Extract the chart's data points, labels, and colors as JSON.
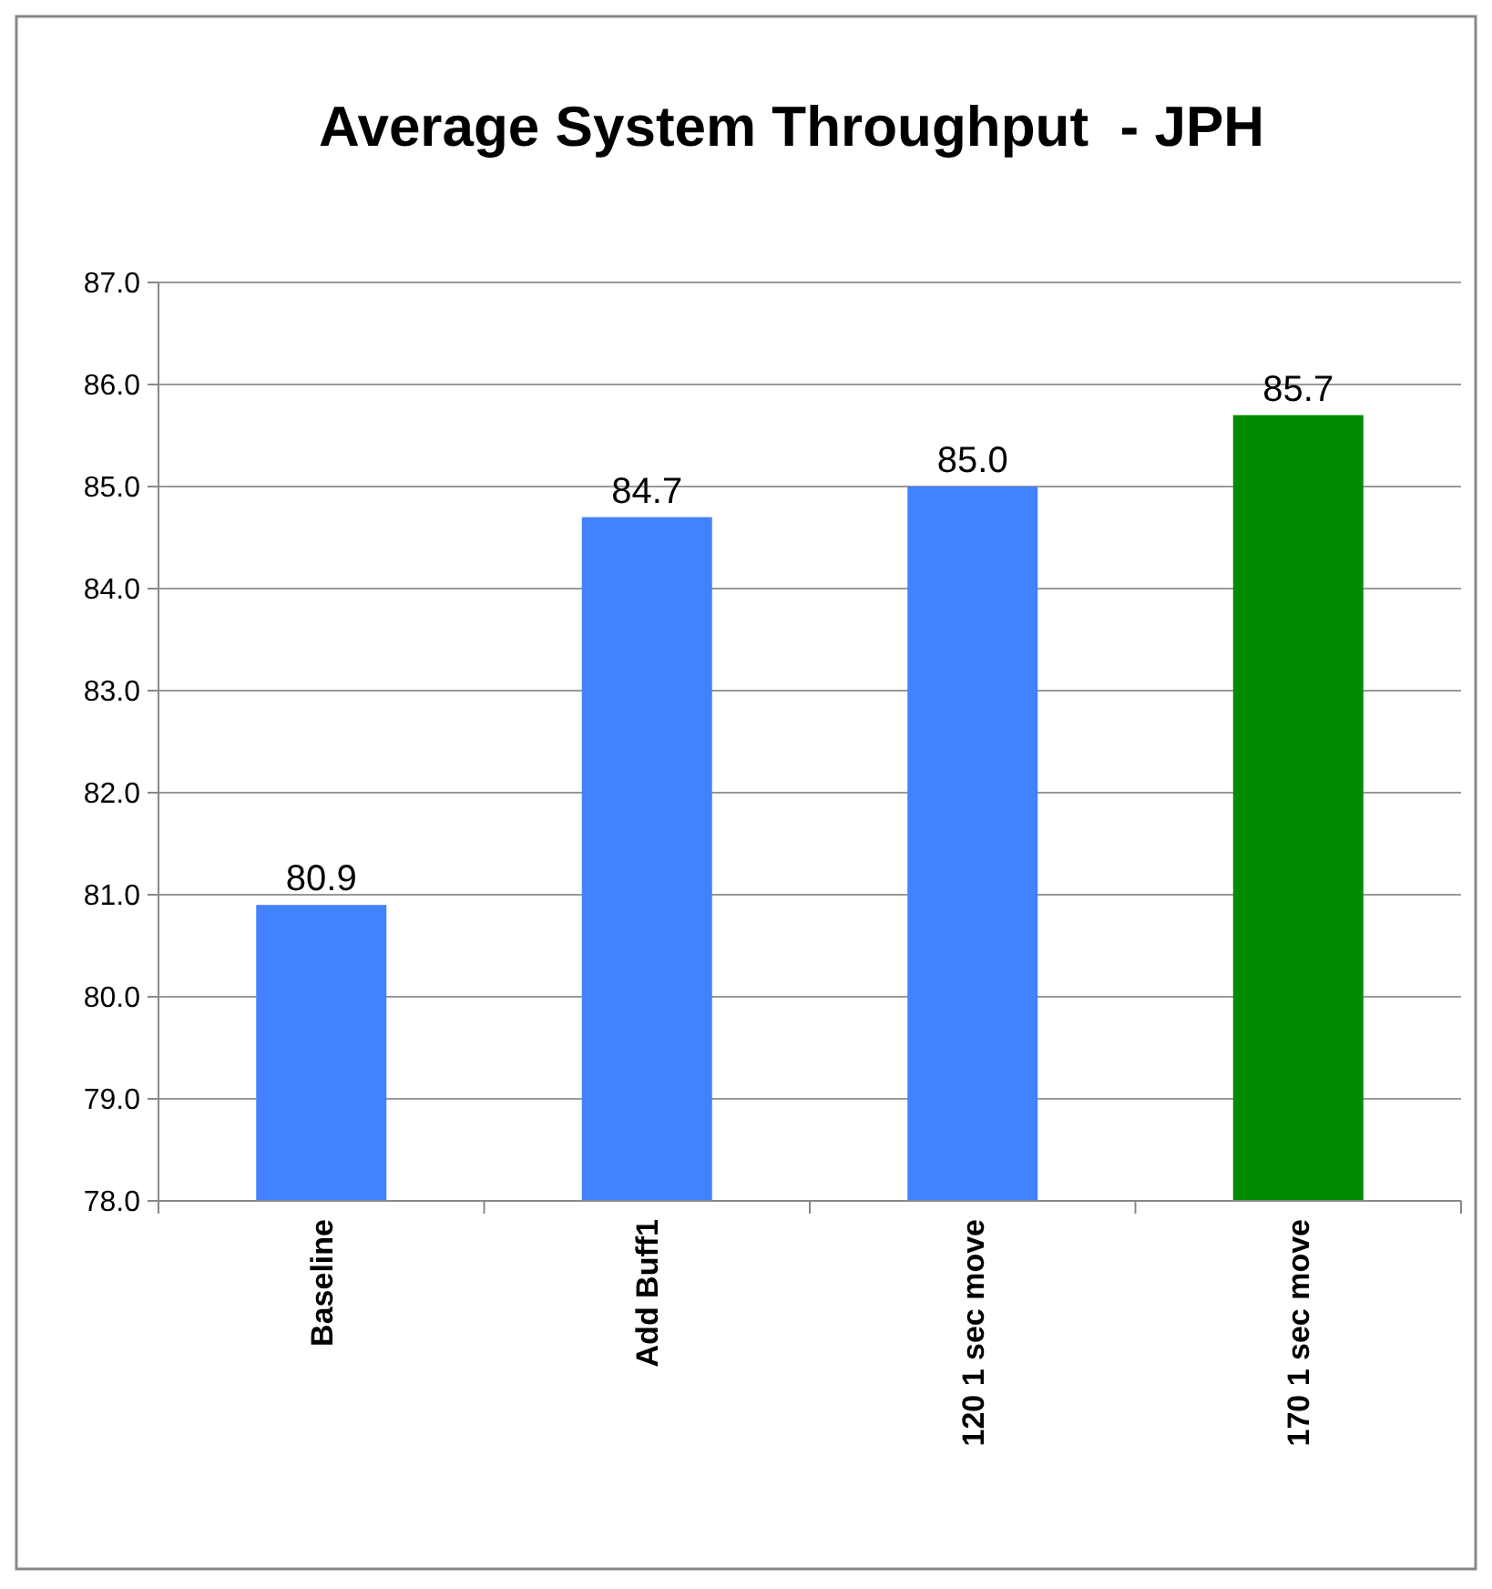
{
  "chart_data": {
    "type": "bar",
    "title": "Average System Throughput  - JPH",
    "categories": [
      "Baseline",
      "Add Buff1",
      "120 1 sec move",
      "170 1 sec move"
    ],
    "values": [
      80.9,
      84.7,
      85.0,
      85.7
    ],
    "colors": [
      "#4282ff",
      "#4282ff",
      "#4282ff",
      "#008c00"
    ],
    "ylim": [
      78,
      87
    ],
    "yticks": [
      {
        "value": 78,
        "label": "78.0"
      },
      {
        "value": 79,
        "label": "79.0"
      },
      {
        "value": 80,
        "label": "80.0"
      },
      {
        "value": 81,
        "label": "81.0"
      },
      {
        "value": 82,
        "label": "82.0"
      },
      {
        "value": 83,
        "label": "83.0"
      },
      {
        "value": 84,
        "label": "84.0"
      },
      {
        "value": 85,
        "label": "85.0"
      },
      {
        "value": 86,
        "label": "86.0"
      },
      {
        "value": 87,
        "label": "87.0"
      }
    ],
    "value_labels": [
      "80.9",
      "84.7",
      "85.0",
      "85.7"
    ],
    "grid": "y"
  }
}
